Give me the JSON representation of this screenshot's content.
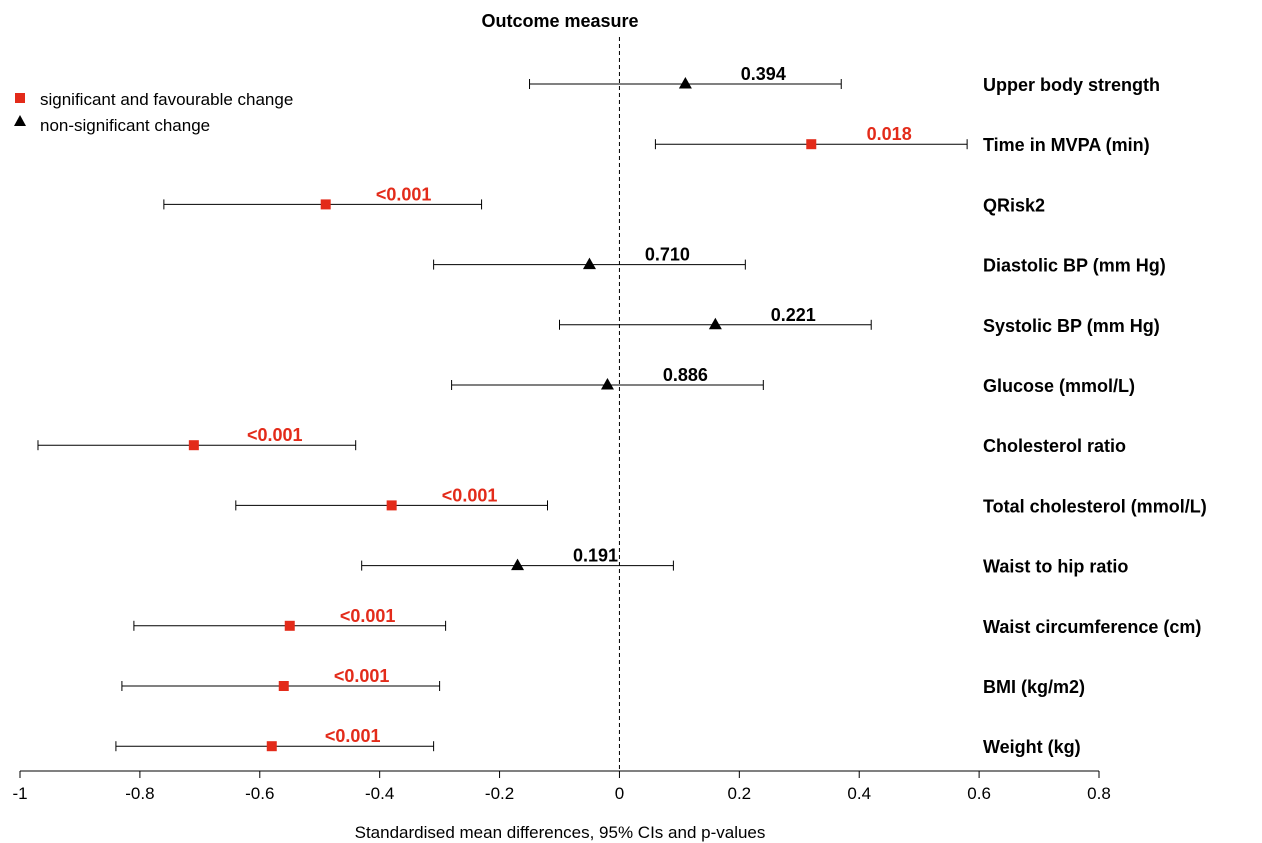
{
  "chart_data": {
    "type": "forest",
    "title": "Outcome measure",
    "xlabel": "Standardised mean differences, 95% CIs and p-values",
    "xlim": [
      -1,
      0.8
    ],
    "xticks": [
      -1,
      -0.8,
      -0.6,
      -0.4,
      -0.2,
      0,
      0.2,
      0.4,
      0.6,
      0.8
    ],
    "xtick_labels": [
      "-1",
      "-0.8",
      "-0.6",
      "-0.4",
      "-0.2",
      "0",
      "0.2",
      "0.4",
      "0.6",
      "0.8"
    ],
    "reference_line": 0,
    "colors": {
      "significant": "#e32b1a",
      "nonsignificant": "#000000"
    },
    "legend": {
      "position": "top-left",
      "entries": [
        {
          "label": "significant and favourable change",
          "marker": "square",
          "color": "#e32b1a"
        },
        {
          "label": "non-significant change",
          "marker": "triangle",
          "color": "#000000"
        }
      ]
    },
    "outcomes": [
      {
        "label": "Upper body strength",
        "estimate": 0.11,
        "ci_low": -0.15,
        "ci_high": 0.37,
        "p_value": "0.394",
        "significant": false
      },
      {
        "label": "Time in MVPA (min)",
        "estimate": 0.32,
        "ci_low": 0.06,
        "ci_high": 0.58,
        "p_value": "0.018",
        "significant": true
      },
      {
        "label": "QRisk2",
        "estimate": -0.49,
        "ci_low": -0.76,
        "ci_high": -0.23,
        "p_value": "<0.001",
        "significant": true
      },
      {
        "label": "Diastolic BP (mm Hg)",
        "estimate": -0.05,
        "ci_low": -0.31,
        "ci_high": 0.21,
        "p_value": "0.710",
        "significant": false
      },
      {
        "label": "Systolic BP (mm Hg)",
        "estimate": 0.16,
        "ci_low": -0.1,
        "ci_high": 0.42,
        "p_value": "0.221",
        "significant": false
      },
      {
        "label": "Glucose (mmol/L)",
        "estimate": -0.02,
        "ci_low": -0.28,
        "ci_high": 0.24,
        "p_value": "0.886",
        "significant": false
      },
      {
        "label": "Cholesterol ratio",
        "estimate": -0.71,
        "ci_low": -0.97,
        "ci_high": -0.44,
        "p_value": "<0.001",
        "significant": true
      },
      {
        "label": "Total cholesterol (mmol/L)",
        "estimate": -0.38,
        "ci_low": -0.64,
        "ci_high": -0.12,
        "p_value": "<0.001",
        "significant": true
      },
      {
        "label": "Waist to hip ratio",
        "estimate": -0.17,
        "ci_low": -0.43,
        "ci_high": 0.09,
        "p_value": "0.191",
        "significant": false
      },
      {
        "label": "Waist circumference (cm)",
        "estimate": -0.55,
        "ci_low": -0.81,
        "ci_high": -0.29,
        "p_value": "<0.001",
        "significant": true
      },
      {
        "label": "BMI (kg/m2)",
        "estimate": -0.56,
        "ci_low": -0.83,
        "ci_high": -0.3,
        "p_value": "<0.001",
        "significant": true
      },
      {
        "label": "Weight (kg)",
        "estimate": -0.58,
        "ci_low": -0.84,
        "ci_high": -0.31,
        "p_value": "<0.001",
        "significant": true
      }
    ]
  }
}
